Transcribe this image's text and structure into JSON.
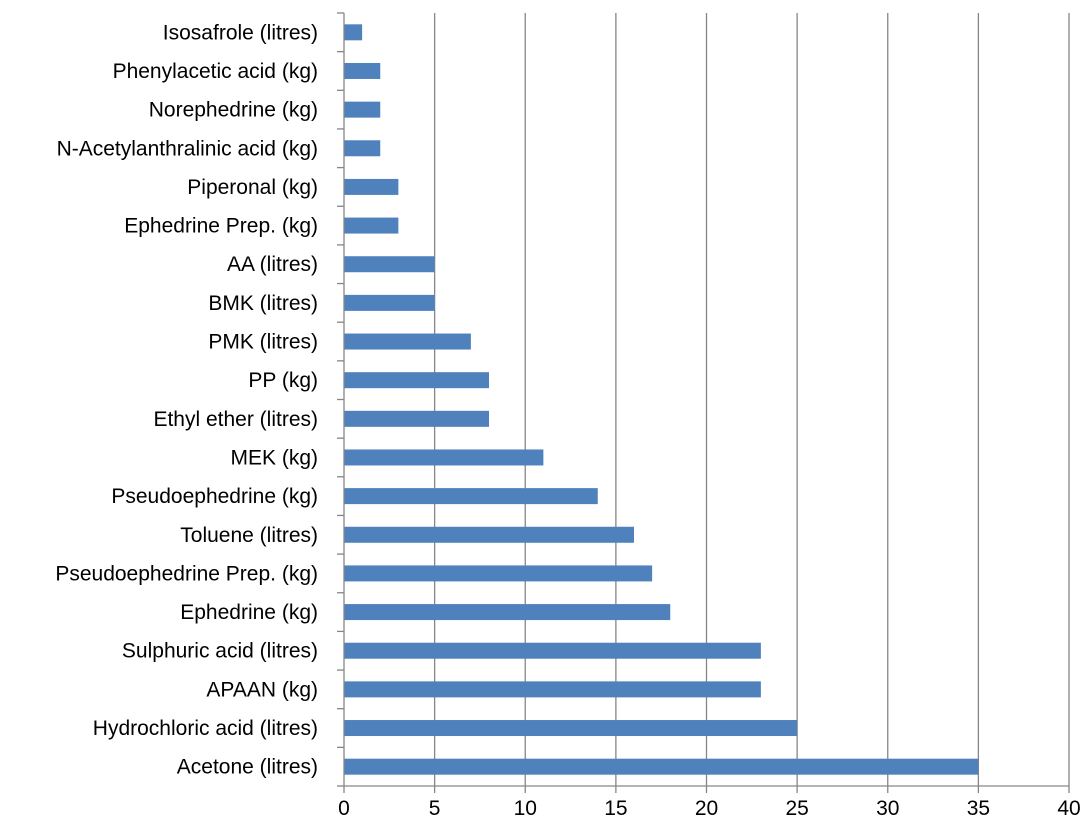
{
  "chart_data": {
    "type": "bar",
    "orientation": "horizontal",
    "title": "",
    "xlabel": "",
    "ylabel": "",
    "categories": [
      "Isosafrole (litres)",
      "Phenylacetic acid (kg)",
      "Norephedrine (kg)",
      "N-Acetylanthralinic acid (kg)",
      "Piperonal (kg)",
      "Ephedrine Prep. (kg)",
      "AA (litres)",
      "BMK (litres)",
      "PMK (litres)",
      "PP (kg)",
      "Ethyl ether (litres)",
      "MEK (kg)",
      "Pseudoephedrine  (kg)",
      "Toluene (litres)",
      "Pseudoephedrine Prep. (kg)",
      "Ephedrine (kg)",
      "Sulphuric acid (litres)",
      "APAAN  (kg)",
      "Hydrochloric acid (litres)",
      "Acetone (litres)"
    ],
    "values": [
      1,
      2,
      2,
      2,
      3,
      3,
      5,
      5,
      7,
      8,
      8,
      11,
      14,
      16,
      17,
      18,
      23,
      23,
      25,
      35
    ],
    "xlim": [
      0,
      40
    ],
    "ticks": [
      "0",
      "5",
      "10",
      "15",
      "20",
      "25",
      "30",
      "35",
      "40"
    ],
    "tick_values": [
      0,
      5,
      10,
      15,
      20,
      25,
      30,
      35,
      40
    ],
    "grid": "vertical",
    "legend": "none",
    "bar_color": "#4f81bd",
    "grid_color": "#868686",
    "axis_color": "#868686"
  }
}
